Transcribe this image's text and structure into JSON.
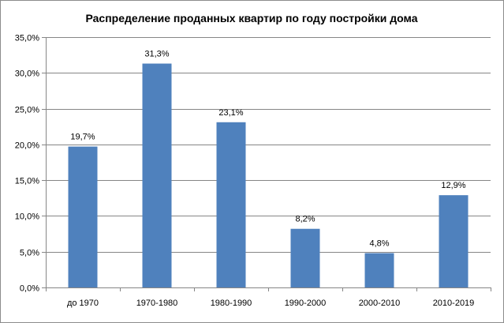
{
  "chart_data": {
    "type": "bar",
    "title": "Распределение проданных квартир по году постройки дома",
    "categories": [
      "до 1970",
      "1970-1980",
      "1980-1990",
      "1990-2000",
      "2000-2010",
      "2010-2019"
    ],
    "values": [
      19.7,
      31.3,
      23.1,
      8.2,
      4.8,
      12.9
    ],
    "data_labels": [
      "19,7%",
      "31,3%",
      "23,1%",
      "8,2%",
      "4,8%",
      "12,9%"
    ],
    "y_ticks": [
      "0,0%",
      "5,0%",
      "10,0%",
      "15,0%",
      "20,0%",
      "25,0%",
      "30,0%",
      "35,0%"
    ],
    "ylim": [
      0,
      35
    ],
    "xlabel": "",
    "ylabel": "",
    "grid": true,
    "legend": "none",
    "bar_color": "#4f81bd"
  }
}
